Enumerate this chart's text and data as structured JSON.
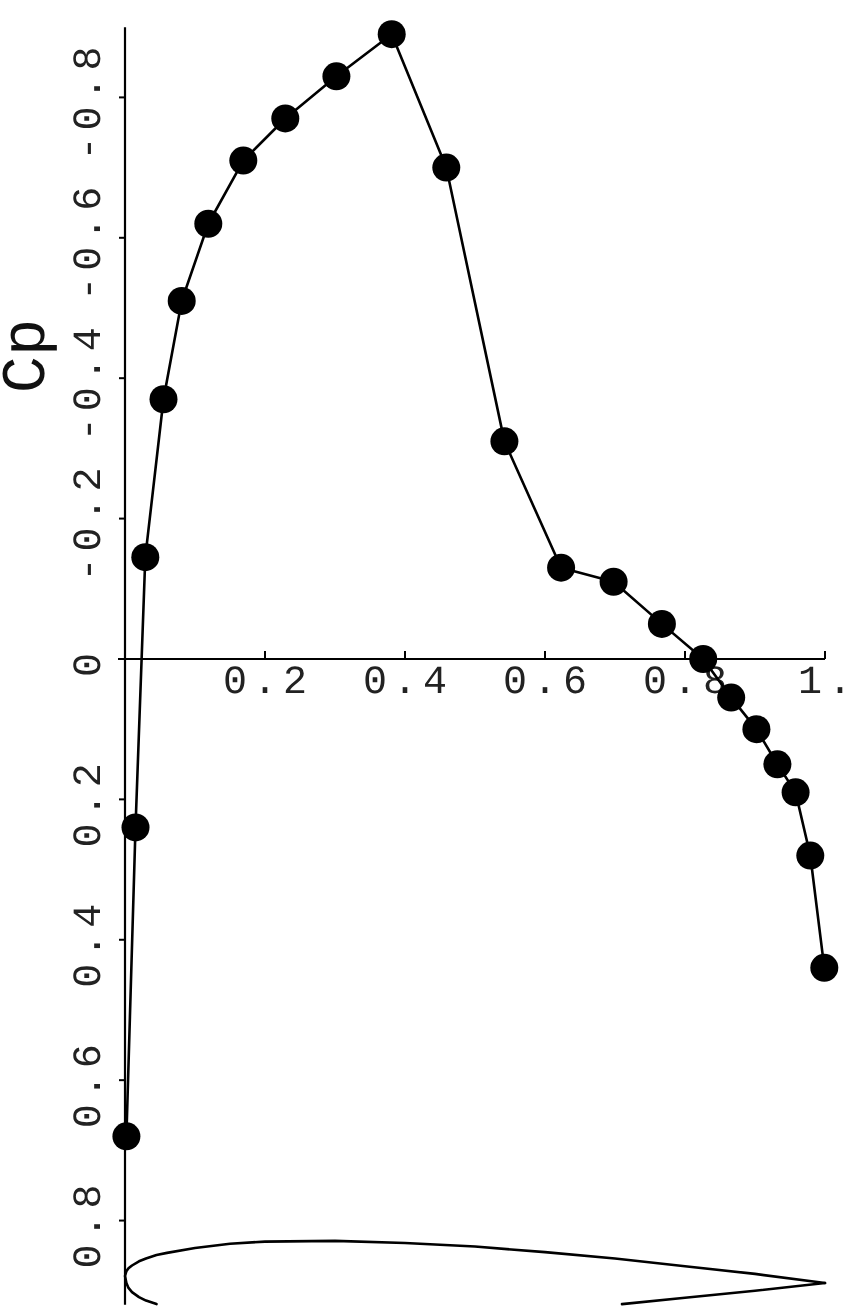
{
  "chart_data": {
    "type": "line",
    "ylabel": "Cp",
    "x": [
      0.002,
      0.015,
      0.029,
      0.055,
      0.081,
      0.119,
      0.169,
      0.229,
      0.302,
      0.381,
      0.459,
      0.542,
      0.623,
      0.698,
      0.767,
      0.826,
      0.866,
      0.902,
      0.932,
      0.958,
      0.979,
      0.999
    ],
    "series": [
      {
        "color": "#000000",
        "values": [
          0.68,
          0.24,
          -0.145,
          -0.37,
          -0.51,
          -0.62,
          -0.71,
          -0.77,
          -0.83,
          -0.89,
          -0.7,
          -0.31,
          -0.13,
          -0.11,
          -0.05,
          0.0,
          0.055,
          0.1,
          0.15,
          0.19,
          0.28,
          0.44
        ]
      },
      {
        "color": "#000000",
        "marker": "none",
        "x": [
          1.0,
          0.9,
          0.8,
          0.7,
          0.6,
          0.5,
          0.4,
          0.3,
          0.2,
          0.15,
          0.1,
          0.06,
          0.045,
          0.03,
          0.02,
          0.01,
          0.005,
          0.002,
          0.0,
          0.002,
          0.005,
          0.01,
          0.02,
          0.03,
          0.045
        ],
        "values": [
          0.889,
          0.876,
          0.865,
          0.854,
          0.845,
          0.837,
          0.832,
          0.829,
          0.83,
          0.833,
          0.839,
          0.846,
          0.849,
          0.854,
          0.858,
          0.864,
          0.868,
          0.872,
          0.879,
          0.889,
          0.896,
          0.902,
          0.909,
          0.914,
          0.919
        ]
      },
      {
        "color": "#000000",
        "marker": "none",
        "x": [
          0.71,
          0.8,
          0.9,
          1.0
        ],
        "values": [
          0.919,
          0.91,
          0.9,
          0.889
        ]
      }
    ],
    "xlim": [
      -0.01,
      1.0
    ],
    "ylim": [
      0.92,
      -0.9
    ],
    "xticks": [
      0.2,
      0.4,
      0.6,
      0.8,
      {
        "value": 1,
        "label": "1."
      }
    ],
    "yticks": [
      -0.8,
      -0.6,
      -0.4,
      -0.2,
      0,
      0.2,
      0.4,
      0.6,
      0.8
    ],
    "marker": "circle",
    "line_style": "solid"
  }
}
